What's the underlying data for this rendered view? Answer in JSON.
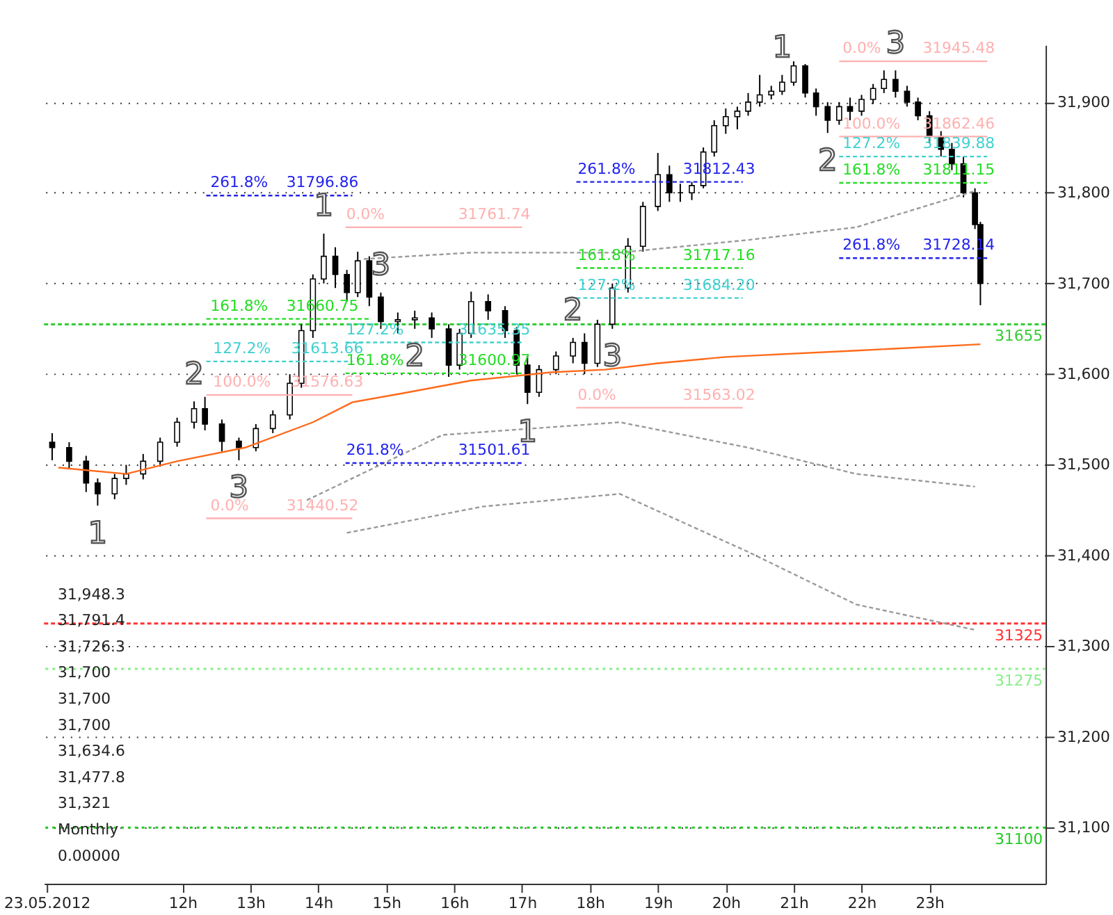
{
  "chart_data": {
    "type": "candlestick",
    "xlim": [
      9.96,
      24.71
    ],
    "ylim": [
      31038,
      31963
    ],
    "xticks": [
      {
        "value": 10,
        "label": "23.05.2012"
      },
      {
        "value": 12,
        "label": "12h"
      },
      {
        "value": 13,
        "label": "13h"
      },
      {
        "value": 14,
        "label": "14h"
      },
      {
        "value": 15,
        "label": "15h"
      },
      {
        "value": 16,
        "label": "16h"
      },
      {
        "value": 17,
        "label": "17h"
      },
      {
        "value": 18,
        "label": "18h"
      },
      {
        "value": 19,
        "label": "19h"
      },
      {
        "value": 20,
        "label": "20h"
      },
      {
        "value": 21,
        "label": "21h"
      },
      {
        "value": 22,
        "label": "22h"
      },
      {
        "value": 23,
        "label": "23h"
      }
    ],
    "yticks": [
      {
        "value": 31100,
        "label": "31,100"
      },
      {
        "value": 31200,
        "label": "31,200"
      },
      {
        "value": 31300,
        "label": "31,300"
      },
      {
        "value": 31400,
        "label": "31,400"
      },
      {
        "value": 31500,
        "label": "31,500"
      },
      {
        "value": 31600,
        "label": "31,600"
      },
      {
        "value": 31700,
        "label": "31,700"
      },
      {
        "value": 31800,
        "label": "31,800"
      },
      {
        "value": 31900,
        "label": "31,900"
      }
    ],
    "grid": "y",
    "series": [
      {
        "color": "#000000",
        "x": [
          10.08,
          10.33,
          10.58,
          10.75,
          11,
          11.17,
          11.42,
          11.67,
          11.92,
          12.17,
          12.33,
          12.58,
          12.83,
          13.08,
          13.33,
          13.58,
          13.75,
          13.92,
          14.08,
          14.25,
          14.42,
          14.58,
          14.75,
          14.92,
          15.17,
          15.42,
          15.67,
          15.92,
          16.08,
          16.25,
          16.5,
          16.75,
          16.92,
          17.08,
          17.25,
          17.5,
          17.75,
          17.92,
          18.11,
          18.33,
          18.56,
          18.78,
          19,
          19.17,
          19.33,
          19.5,
          19.67,
          19.83,
          20,
          20.17,
          20.33,
          20.5,
          20.67,
          20.83,
          21,
          21.17,
          21.33,
          21.5,
          21.67,
          21.83,
          22,
          22.17,
          22.33,
          22.5,
          22.67,
          22.83,
          23,
          23.17,
          23.33,
          23.5,
          23.67,
          23.75
        ],
        "ohlc": [
          [
            31525,
            31535,
            31505,
            31519
          ],
          [
            31519,
            31525,
            31495,
            31504
          ],
          [
            31504,
            31510,
            31470,
            31480
          ],
          [
            31480,
            31485,
            31455,
            31468
          ],
          [
            31468,
            31490,
            31462,
            31485
          ],
          [
            31485,
            31500,
            31478,
            31490
          ],
          [
            31490,
            31512,
            31484,
            31504
          ],
          [
            31504,
            31530,
            31498,
            31525
          ],
          [
            31525,
            31552,
            31520,
            31547
          ],
          [
            31547,
            31570,
            31540,
            31562
          ],
          [
            31562,
            31575,
            31538,
            31545
          ],
          [
            31545,
            31550,
            31515,
            31526
          ],
          [
            31526,
            31530,
            31505,
            31519
          ],
          [
            31519,
            31545,
            31515,
            31540
          ],
          [
            31540,
            31560,
            31535,
            31555
          ],
          [
            31555,
            31600,
            31550,
            31590
          ],
          [
            31590,
            31655,
            31585,
            31648
          ],
          [
            31648,
            31710,
            31640,
            31705
          ],
          [
            31705,
            31755,
            31700,
            31730
          ],
          [
            31730,
            31740,
            31695,
            31710
          ],
          [
            31710,
            31715,
            31680,
            31690
          ],
          [
            31690,
            31735,
            31685,
            31725
          ],
          [
            31725,
            31730,
            31675,
            31685
          ],
          [
            31685,
            31690,
            31650,
            31658
          ],
          [
            31658,
            31668,
            31645,
            31660
          ],
          [
            31660,
            31670,
            31650,
            31662
          ],
          [
            31662,
            31668,
            31640,
            31650
          ],
          [
            31650,
            31655,
            31597,
            31610
          ],
          [
            31610,
            31650,
            31605,
            31645
          ],
          [
            31645,
            31691,
            31640,
            31680
          ],
          [
            31680,
            31688,
            31660,
            31670
          ],
          [
            31670,
            31675,
            31640,
            31648
          ],
          [
            31648,
            31652,
            31600,
            31610
          ],
          [
            31610,
            31620,
            31567,
            31580
          ],
          [
            31580,
            31610,
            31575,
            31605
          ],
          [
            31605,
            31625,
            31600,
            31620
          ],
          [
            31620,
            31640,
            31612,
            31635
          ],
          [
            31635,
            31645,
            31600,
            31612
          ],
          [
            31612,
            31660,
            31608,
            31655
          ],
          [
            31655,
            31700,
            31650,
            31695
          ],
          [
            31695,
            31750,
            31690,
            31741
          ],
          [
            31741,
            31790,
            31735,
            31785
          ],
          [
            31785,
            31844,
            31780,
            31820
          ],
          [
            31820,
            31830,
            31790,
            31800
          ],
          [
            31800,
            31810,
            31790,
            31800
          ],
          [
            31800,
            31812,
            31792,
            31808
          ],
          [
            31808,
            31850,
            31805,
            31845
          ],
          [
            31845,
            31880,
            31840,
            31874
          ],
          [
            31874,
            31893,
            31865,
            31884
          ],
          [
            31884,
            31895,
            31870,
            31890
          ],
          [
            31890,
            31910,
            31885,
            31900
          ],
          [
            31900,
            31930,
            31895,
            31908
          ],
          [
            31908,
            31918,
            31903,
            31912
          ],
          [
            31912,
            31930,
            31908,
            31922
          ],
          [
            31922,
            31945,
            31918,
            31940
          ],
          [
            31940,
            31942,
            31905,
            31910
          ],
          [
            31910,
            31915,
            31885,
            31895
          ],
          [
            31895,
            31900,
            31866,
            31880
          ],
          [
            31880,
            31900,
            31875,
            31895
          ],
          [
            31895,
            31905,
            31880,
            31890
          ],
          [
            31890,
            31908,
            31885,
            31903
          ],
          [
            31903,
            31920,
            31898,
            31915
          ],
          [
            31915,
            31935,
            31910,
            31925
          ],
          [
            31925,
            31935,
            31905,
            31912
          ],
          [
            31912,
            31918,
            31895,
            31900
          ],
          [
            31900,
            31905,
            31880,
            31885
          ],
          [
            31885,
            31890,
            31855,
            31862
          ],
          [
            31862,
            31868,
            31840,
            31848
          ],
          [
            31848,
            31855,
            31825,
            31832
          ],
          [
            31832,
            31840,
            31795,
            31800
          ],
          [
            31800,
            31805,
            31760,
            31765
          ],
          [
            31765,
            31768,
            31676,
            31700
          ]
        ]
      },
      {
        "type": "line",
        "color": "#ff6a1a",
        "line_style": "solid",
        "x": [
          10.17,
          11.17,
          11.92,
          12.92,
          13.92,
          14.5,
          15.25,
          16.25,
          17.42,
          18.22,
          19,
          20,
          21.92,
          23.75
        ],
        "values": [
          31497,
          31490,
          31504,
          31519,
          31547,
          31569,
          31579,
          31593,
          31602,
          31605,
          31612,
          31619,
          31626,
          31633
        ]
      },
      {
        "type": "line",
        "color": "#999999",
        "line_style": "dashed",
        "x": [
          14.67,
          16.25,
          18.44,
          20.33,
          21.92,
          23.67
        ],
        "values": [
          31727,
          31734,
          31734,
          31748,
          31762,
          31802
        ]
      },
      {
        "type": "line",
        "color": "#999999",
        "line_style": "dashed",
        "x": [
          13.83,
          15.83,
          18.44,
          20.33,
          21.92,
          23.67
        ],
        "values": [
          31461,
          31533,
          31547,
          31519,
          31490,
          31476
        ]
      },
      {
        "type": "line",
        "color": "#999999",
        "line_style": "dashed",
        "x": [
          14.42,
          16.42,
          18.44,
          20.33,
          21.92,
          23.67
        ],
        "values": [
          31425,
          31454,
          31468,
          31404,
          31346,
          31318
        ]
      },
      {
        "type": "line",
        "color": "#2222ee",
        "line_style": "dashed",
        "x": [
          12.35,
          14.5
        ],
        "values": [
          31797,
          31797
        ]
      },
      {
        "type": "line",
        "color": "#22dd22",
        "line_style": "dashed",
        "x": [
          12.35,
          14.75
        ],
        "values": [
          31661,
          31661
        ]
      },
      {
        "type": "line",
        "color": "#40d0d0",
        "line_style": "dashed",
        "x": [
          12.35,
          14.5
        ],
        "values": [
          31614,
          31614
        ]
      },
      {
        "type": "line",
        "color": "#ffb0b0",
        "line_style": "solid",
        "x": [
          12.35,
          14.5
        ],
        "values": [
          31577,
          31577
        ]
      },
      {
        "type": "line",
        "color": "#ffb0b0",
        "line_style": "solid",
        "x": [
          12.35,
          14.5
        ],
        "values": [
          31441,
          31441
        ]
      },
      {
        "type": "line",
        "color": "#ffb0b0",
        "line_style": "solid",
        "x": [
          14.4,
          17.0
        ],
        "values": [
          31762,
          31762
        ]
      },
      {
        "type": "line",
        "color": "#40d0d0",
        "line_style": "dashed",
        "x": [
          14.4,
          17.0
        ],
        "values": [
          31635,
          31635
        ]
      },
      {
        "type": "line",
        "color": "#22dd22",
        "line_style": "dashed",
        "x": [
          14.4,
          17.0
        ],
        "values": [
          31601,
          31601
        ]
      },
      {
        "type": "line",
        "color": "#2222ee",
        "line_style": "dashed",
        "x": [
          14.4,
          17.0
        ],
        "values": [
          31502,
          31502
        ]
      },
      {
        "type": "line",
        "color": "#2222ee",
        "line_style": "dashed",
        "x": [
          17.8,
          20.25
        ],
        "values": [
          31812,
          31812
        ]
      },
      {
        "type": "line",
        "color": "#22dd22",
        "line_style": "dashed",
        "x": [
          17.8,
          20.25
        ],
        "values": [
          31717,
          31717
        ]
      },
      {
        "type": "line",
        "color": "#40d0d0",
        "line_style": "dashed",
        "x": [
          17.8,
          20.25
        ],
        "values": [
          31684,
          31684
        ]
      },
      {
        "type": "line",
        "color": "#ffb0b0",
        "line_style": "solid",
        "x": [
          17.8,
          20.25
        ],
        "values": [
          31563,
          31563
        ]
      },
      {
        "type": "line",
        "color": "#ffb0b0",
        "line_style": "solid",
        "x": [
          21.67,
          23.85
        ],
        "values": [
          31945,
          31945
        ]
      },
      {
        "type": "line",
        "color": "#ffb0b0",
        "line_style": "solid",
        "x": [
          21.67,
          23.85
        ],
        "values": [
          31862,
          31862
        ]
      },
      {
        "type": "line",
        "color": "#40d0d0",
        "line_style": "dashed",
        "x": [
          21.67,
          23.85
        ],
        "values": [
          31840,
          31840
        ]
      },
      {
        "type": "line",
        "color": "#22dd22",
        "line_style": "dashed",
        "x": [
          21.67,
          23.85
        ],
        "values": [
          31811,
          31811
        ]
      },
      {
        "type": "line",
        "color": "#2222ee",
        "line_style": "dashed",
        "x": [
          21.67,
          23.85
        ],
        "values": [
          31728,
          31728
        ]
      }
    ],
    "ref_lines": [
      {
        "axis": "y",
        "value": 31655,
        "label": "31655",
        "color": "#33cc33",
        "line_style": "dashed"
      },
      {
        "axis": "y",
        "value": 31325,
        "label": "31325",
        "color": "#ff3333",
        "line_style": "dashed"
      },
      {
        "axis": "y",
        "value": 31275,
        "label": "31275",
        "color": "#88ee88",
        "line_style": "dotted"
      },
      {
        "axis": "y",
        "value": 31100,
        "label": "31100",
        "color": "#22cc22",
        "line_style": "dotted"
      }
    ],
    "annotations": [
      {
        "text": "261.8%",
        "x": 12.41,
        "y": 31797
      },
      {
        "text": "31796.86",
        "x": 13.53,
        "y": 31797
      },
      {
        "text": "0.0%",
        "x": 14.41,
        "y": 31762
      },
      {
        "text": "31761.74",
        "x": 16.06,
        "y": 31762
      },
      {
        "text": "161.8%",
        "x": 12.41,
        "y": 31661
      },
      {
        "text": "31660.75",
        "x": 13.53,
        "y": 31661
      },
      {
        "text": "127.2%",
        "x": 12.45,
        "y": 31614
      },
      {
        "text": "31613.66",
        "x": 13.6,
        "y": 31614
      },
      {
        "text": "100.0%",
        "x": 12.45,
        "y": 31577
      },
      {
        "text": "31576.63",
        "x": 13.6,
        "y": 31577
      },
      {
        "text": "127.2%",
        "x": 14.41,
        "y": 31635
      },
      {
        "text": "31635.35",
        "x": 16.06,
        "y": 31635
      },
      {
        "text": "161.8%",
        "x": 14.41,
        "y": 31601
      },
      {
        "text": "31600.97",
        "x": 16.06,
        "y": 31601
      },
      {
        "text": "261.8%",
        "x": 14.41,
        "y": 31502
      },
      {
        "text": "31501.61",
        "x": 16.06,
        "y": 31502
      },
      {
        "text": "0.0%",
        "x": 12.41,
        "y": 31441
      },
      {
        "text": "31440.52",
        "x": 13.53,
        "y": 31441
      },
      {
        "text": "0.0%",
        "x": 17.82,
        "y": 31563
      },
      {
        "text": "31563.02",
        "x": 19.37,
        "y": 31563
      },
      {
        "text": "161.8%",
        "x": 17.82,
        "y": 31717
      },
      {
        "text": "31717.16",
        "x": 19.37,
        "y": 31717
      },
      {
        "text": "127.2%",
        "x": 17.82,
        "y": 31684
      },
      {
        "text": "31684.20",
        "x": 19.37,
        "y": 31684
      },
      {
        "text": "261.8%",
        "x": 17.82,
        "y": 31812
      },
      {
        "text": "31812.43",
        "x": 19.37,
        "y": 31812
      },
      {
        "text": "0.0%",
        "x": 21.72,
        "y": 31945
      },
      {
        "text": "31945.48",
        "x": 22.9,
        "y": 31945
      },
      {
        "text": "100.0%",
        "x": 21.72,
        "y": 31862
      },
      {
        "text": "31862.46",
        "x": 22.9,
        "y": 31862
      },
      {
        "text": "127.2%",
        "x": 21.72,
        "y": 31840
      },
      {
        "text": "31839.88",
        "x": 22.9,
        "y": 31840
      },
      {
        "text": "161.8%",
        "x": 21.72,
        "y": 31811
      },
      {
        "text": "31811.15",
        "x": 22.9,
        "y": 31811
      },
      {
        "text": "261.8%",
        "x": 21.72,
        "y": 31728
      },
      {
        "text": "31728.14",
        "x": 22.9,
        "y": 31728
      },
      {
        "text": "1",
        "x": 10.75,
        "y": 31455
      },
      {
        "text": "2",
        "x": 12.17,
        "y": 31570
      },
      {
        "text": "3",
        "x": 12.83,
        "y": 31505
      },
      {
        "text": "1",
        "x": 14.08,
        "y": 31755
      },
      {
        "text": "2",
        "x": 15.42,
        "y": 31650
      },
      {
        "text": "3",
        "x": 14.92,
        "y": 31690
      },
      {
        "text": "1",
        "x": 17.08,
        "y": 31567
      },
      {
        "text": "2",
        "x": 17.75,
        "y": 31640
      },
      {
        "text": "3",
        "x": 18.33,
        "y": 31650
      },
      {
        "text": "1",
        "x": 20.83,
        "y": 31930
      },
      {
        "text": "2",
        "x": 21.5,
        "y": 31866
      },
      {
        "text": "3",
        "x": 22.5,
        "y": 31935
      },
      "31,948.3",
      "31,791.4",
      "31,726.3",
      "31,700",
      "31,700",
      "31,700",
      "31,634.6",
      "31,477.8",
      "31,321",
      "Monthly",
      "0.00000"
    ]
  }
}
